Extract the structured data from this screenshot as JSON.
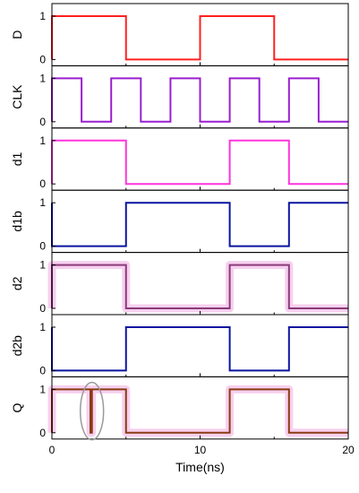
{
  "chart_data": {
    "type": "line",
    "xlabel": "Time(ns)",
    "xlim": [
      0,
      20
    ],
    "x_ticks": [
      "0",
      "10",
      "20"
    ],
    "y_ticks": [
      "0",
      "1"
    ],
    "ylim": [
      0,
      1
    ],
    "panels": [
      {
        "label": "D",
        "color": "#ff2020",
        "x": [
          0,
          0,
          5,
          5,
          10,
          10,
          15,
          15,
          20
        ],
        "y": [
          0,
          1,
          1,
          0,
          0,
          1,
          1,
          0,
          0
        ]
      },
      {
        "label": "CLK",
        "color": "#9a1fd0",
        "x": [
          0,
          0,
          2,
          2,
          4,
          4,
          6,
          6,
          8,
          8,
          10,
          10,
          12,
          12,
          14,
          14,
          16,
          16,
          18,
          18,
          20
        ],
        "y": [
          0,
          1,
          1,
          0,
          0,
          1,
          1,
          0,
          0,
          1,
          1,
          0,
          0,
          1,
          1,
          0,
          0,
          1,
          1,
          0,
          0
        ]
      },
      {
        "label": "d1",
        "color": "#ff33dd",
        "x": [
          0,
          0,
          5,
          5,
          12,
          12,
          16,
          16,
          20
        ],
        "y": [
          0,
          1,
          1,
          0,
          0,
          1,
          1,
          0,
          0
        ]
      },
      {
        "label": "d1b",
        "color": "#0a14a0",
        "x": [
          0,
          0,
          5,
          5,
          12,
          12,
          16,
          16,
          20
        ],
        "y": [
          1,
          0,
          0,
          1,
          1,
          0,
          0,
          1,
          1
        ]
      },
      {
        "label": "d2",
        "color": "#8a3a7a",
        "highlight": "#f7d0ef",
        "x": [
          0,
          0,
          5,
          5,
          12,
          12,
          16,
          16,
          20
        ],
        "y": [
          0,
          1,
          1,
          0,
          0,
          1,
          1,
          0,
          0
        ]
      },
      {
        "label": "d2b",
        "color": "#0a14a0",
        "x": [
          0,
          0,
          5,
          5,
          12,
          12,
          16,
          16,
          20
        ],
        "y": [
          1,
          0,
          0,
          1,
          1,
          0,
          0,
          1,
          1
        ]
      },
      {
        "label": "Q",
        "color": "#8a3a10",
        "highlight": "#f7d0ef",
        "x": [
          0,
          0,
          2.6,
          2.6,
          2.7,
          2.7,
          5,
          5,
          12,
          12,
          16,
          16,
          20
        ],
        "y": [
          0,
          1,
          1,
          0,
          0,
          1,
          1,
          0,
          0,
          1,
          1,
          0,
          0
        ],
        "annotation": {
          "shape": "ellipse",
          "x": 2.7,
          "y": 0.5,
          "color": "#999999"
        }
      }
    ]
  }
}
